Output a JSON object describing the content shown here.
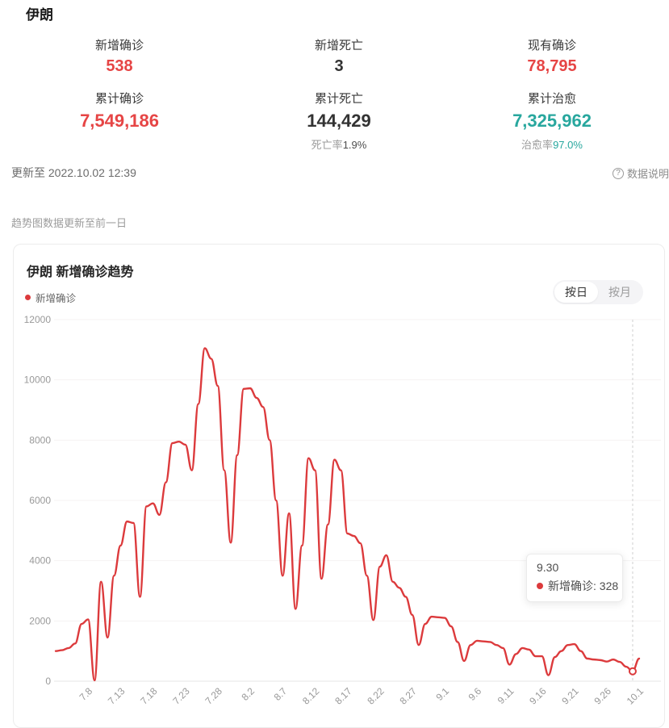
{
  "page": {
    "title": "伊朗"
  },
  "stats": [
    {
      "label": "新增确诊",
      "value": "538"
    },
    {
      "label": "新增死亡",
      "value": "3"
    },
    {
      "label": "现有确诊",
      "value": "78,795"
    },
    {
      "label": "累计确诊",
      "value": "7,549,186"
    },
    {
      "label": "累计死亡",
      "value": "144,429",
      "sub_label": "死亡率",
      "sub_value": "1.9%"
    },
    {
      "label": "累计治愈",
      "value": "7,325,962",
      "sub_label": "治愈率",
      "sub_value": "97.0%"
    }
  ],
  "meta": {
    "updated": "更新至 2022.10.02 12:39",
    "help_icon": "?",
    "data_note": "数据说明",
    "trend_note": "趋势图数据更新至前一日"
  },
  "chart_card": {
    "title": "伊朗 新增确诊趋势",
    "legend": "新增确诊",
    "toggle_day": "按日",
    "toggle_month": "按月"
  },
  "tooltip": {
    "date": "9.30",
    "text": "新增确诊: 328"
  },
  "colors": {
    "stat_red": "#e64545",
    "stat_dark": "#333333",
    "stat_teal": "#28a79e",
    "line_red": "#dc3a3c",
    "axis_gray": "#999999",
    "gridline": "#f4f3f3"
  },
  "chart_data": {
    "type": "line",
    "title": "伊朗 新增确诊趋势",
    "xlabel": "",
    "ylabel": "",
    "ylim": [
      0,
      12000
    ],
    "ytick_interval": 2000,
    "yticks": [
      0,
      2000,
      4000,
      6000,
      8000,
      10000,
      12000
    ],
    "grid": true,
    "legend_position": "top-left",
    "xticks": [
      "7.8",
      "7.13",
      "7.18",
      "7.23",
      "7.28",
      "8.2",
      "8.7",
      "8.12",
      "8.17",
      "8.22",
      "8.27",
      "9.1",
      "9.6",
      "9.11",
      "9.16",
      "9.21",
      "9.26",
      "10.1"
    ],
    "xtick_start_index": 5,
    "xtick_step": 5,
    "highlight": {
      "date": "9.30",
      "value": 328
    },
    "series": [
      {
        "name": "新增确诊",
        "color": "#dc3a3c",
        "x": [
          "7.3",
          "7.4",
          "7.5",
          "7.6",
          "7.7",
          "7.8",
          "7.9",
          "7.10",
          "7.11",
          "7.12",
          "7.13",
          "7.14",
          "7.15",
          "7.16",
          "7.17",
          "7.18",
          "7.19",
          "7.20",
          "7.21",
          "7.22",
          "7.23",
          "7.24",
          "7.25",
          "7.26",
          "7.27",
          "7.28",
          "7.29",
          "7.30",
          "7.31",
          "8.1",
          "8.2",
          "8.3",
          "8.4",
          "8.5",
          "8.6",
          "8.7",
          "8.8",
          "8.9",
          "8.10",
          "8.11",
          "8.12",
          "8.13",
          "8.14",
          "8.15",
          "8.16",
          "8.17",
          "8.18",
          "8.19",
          "8.20",
          "8.21",
          "8.22",
          "8.23",
          "8.24",
          "8.25",
          "8.26",
          "8.27",
          "8.28",
          "8.29",
          "8.30",
          "8.31",
          "9.1",
          "9.2",
          "9.3",
          "9.4",
          "9.5",
          "9.6",
          "9.7",
          "9.8",
          "9.9",
          "9.10",
          "9.11",
          "9.12",
          "9.13",
          "9.14",
          "9.15",
          "9.16",
          "9.17",
          "9.18",
          "9.19",
          "9.20",
          "9.21",
          "9.22",
          "9.23",
          "9.24",
          "9.25",
          "9.26",
          "9.27",
          "9.28",
          "9.29",
          "9.30",
          "10.1"
        ],
        "values": [
          1000,
          1030,
          1100,
          1250,
          1900,
          2050,
          30,
          3300,
          1450,
          3500,
          4500,
          5300,
          5250,
          2800,
          5800,
          5900,
          5520,
          6600,
          7900,
          7950,
          7850,
          7000,
          9200,
          11050,
          10700,
          9800,
          7000,
          4600,
          7500,
          9700,
          9720,
          9400,
          9100,
          8000,
          6000,
          3500,
          5570,
          2400,
          4500,
          7400,
          7000,
          3400,
          5200,
          7350,
          7000,
          4900,
          4820,
          4580,
          3500,
          2030,
          3800,
          4180,
          3300,
          3100,
          2800,
          2200,
          1200,
          1900,
          2140,
          2120,
          2100,
          1820,
          1300,
          670,
          1200,
          1340,
          1320,
          1300,
          1200,
          1100,
          550,
          900,
          1100,
          1050,
          830,
          830,
          200,
          800,
          1000,
          1200,
          1230,
          1000,
          750,
          720,
          700,
          650,
          720,
          640,
          480,
          328,
          750
        ]
      }
    ]
  }
}
